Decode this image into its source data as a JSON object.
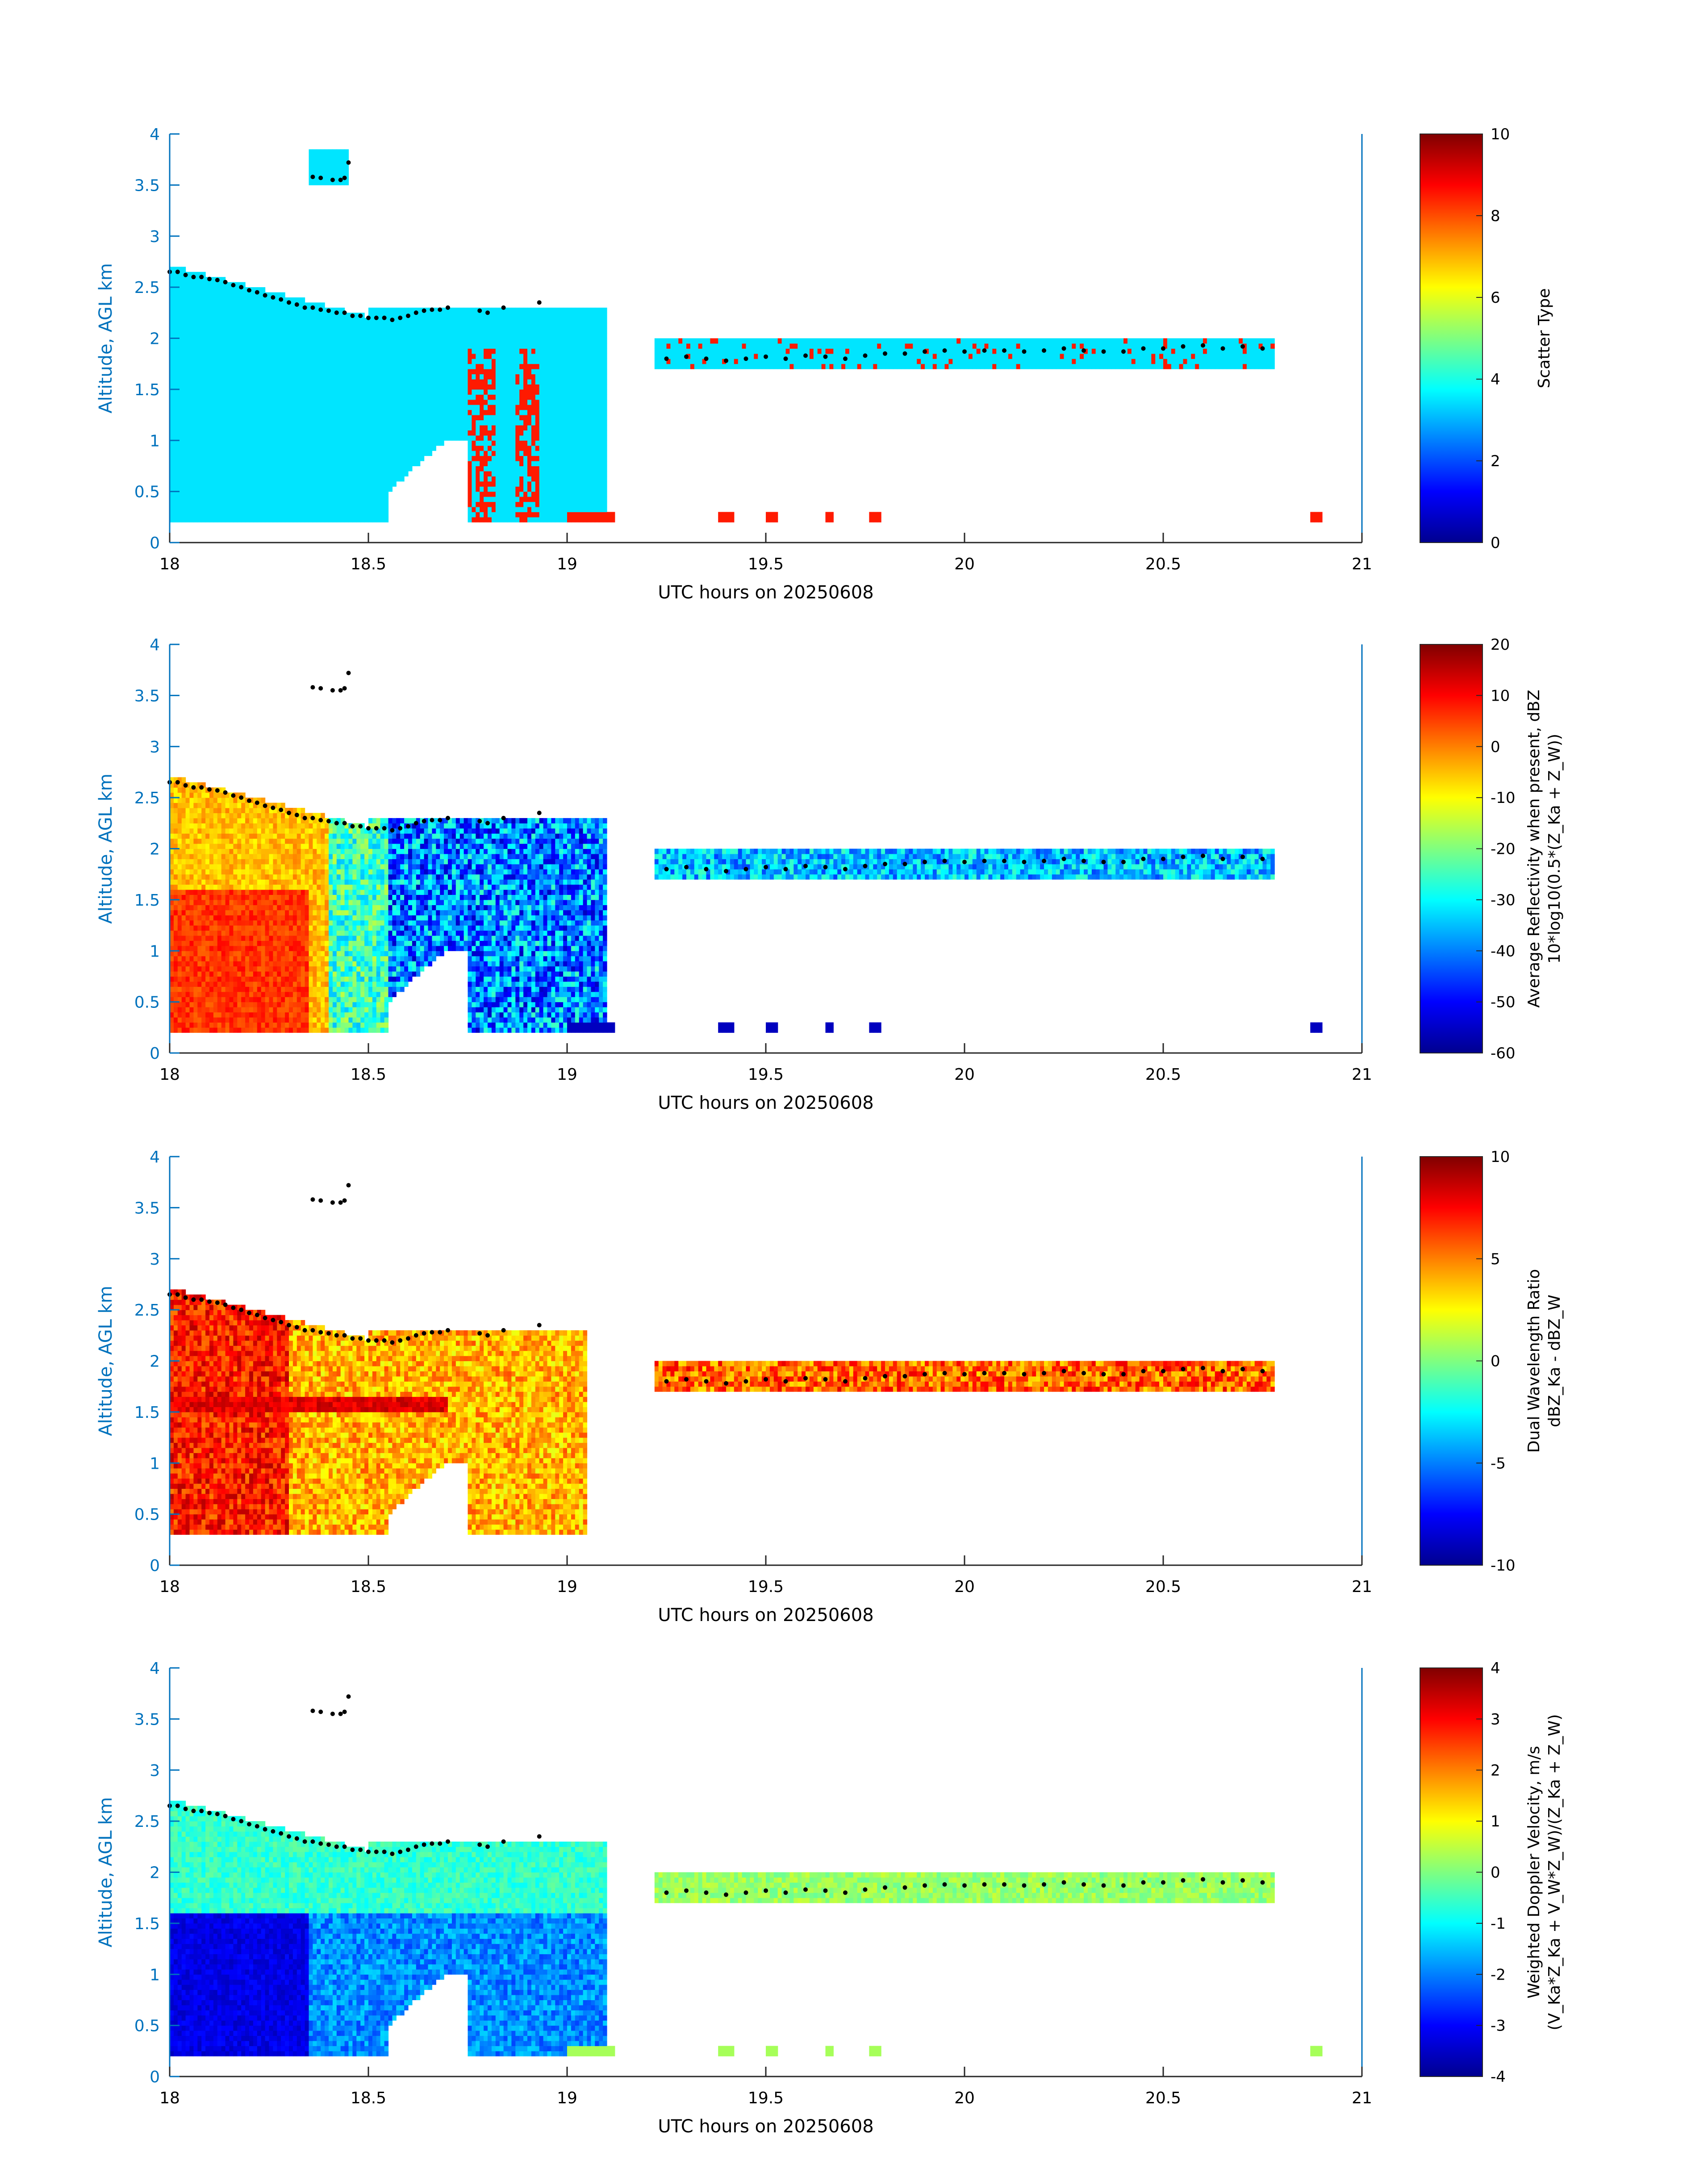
{
  "chart_data": [
    {
      "type": "heatmap",
      "panel": "scatter-type",
      "xlabel": "UTC hours on 20250608",
      "ylabel": "Altitude, AGL km",
      "xlim": [
        18,
        21
      ],
      "ylim": [
        0,
        4
      ],
      "xticks": [
        "18",
        "18.5",
        "19",
        "19.5",
        "20",
        "20.5",
        "21"
      ],
      "yticks": [
        "0",
        "0.5",
        "1",
        "1.5",
        "2",
        "2.5",
        "3",
        "3.5",
        "4"
      ],
      "colorbar": {
        "label_lines": [
          "Scatter Type"
        ],
        "range": [
          0,
          10
        ],
        "ticks": [
          "0",
          "2",
          "4",
          "6",
          "8",
          "10"
        ]
      }
    },
    {
      "type": "heatmap",
      "panel": "reflectivity",
      "xlabel": "UTC hours on 20250608",
      "ylabel": "Altitude, AGL km",
      "xlim": [
        18,
        21
      ],
      "ylim": [
        0,
        4
      ],
      "xticks": [
        "18",
        "18.5",
        "19",
        "19.5",
        "20",
        "20.5",
        "21"
      ],
      "yticks": [
        "0",
        "0.5",
        "1",
        "1.5",
        "2",
        "2.5",
        "3",
        "3.5",
        "4"
      ],
      "colorbar": {
        "label_lines": [
          "Average Reflectivity when present, dBZ",
          "10*log10(0.5*(Z_Ka + Z_W))"
        ],
        "range": [
          -60,
          20
        ],
        "ticks": [
          "-60",
          "-50",
          "-40",
          "-30",
          "-20",
          "-10",
          "0",
          "10",
          "20"
        ]
      }
    },
    {
      "type": "heatmap",
      "panel": "dual-wavelength-ratio",
      "xlabel": "UTC hours on 20250608",
      "ylabel": "Altitude, AGL km",
      "xlim": [
        18,
        21
      ],
      "ylim": [
        0,
        4
      ],
      "xticks": [
        "18",
        "18.5",
        "19",
        "19.5",
        "20",
        "20.5",
        "21"
      ],
      "yticks": [
        "0",
        "0.5",
        "1",
        "1.5",
        "2",
        "2.5",
        "3",
        "3.5",
        "4"
      ],
      "colorbar": {
        "label_lines": [
          "Dual Wavelength Ratio",
          "dBZ_Ka - dBZ_W"
        ],
        "range": [
          -10,
          10
        ],
        "ticks": [
          "-10",
          "-5",
          "0",
          "5",
          "10"
        ]
      }
    },
    {
      "type": "heatmap",
      "panel": "doppler-velocity",
      "xlabel": "UTC hours on 20250608",
      "ylabel": "Altitude, AGL km",
      "xlim": [
        18,
        21
      ],
      "ylim": [
        0,
        4
      ],
      "xticks": [
        "18",
        "18.5",
        "19",
        "19.5",
        "20",
        "20.5",
        "21"
      ],
      "yticks": [
        "0",
        "0.5",
        "1",
        "1.5",
        "2",
        "2.5",
        "3",
        "3.5",
        "4"
      ],
      "colorbar": {
        "label_lines": [
          "Weighted Doppler Velocity, m/s",
          "(V_Ka*Z_Ka + V_W*Z_W)/(Z_Ka + Z_W)"
        ],
        "range": [
          -4,
          4
        ],
        "ticks": [
          "-4",
          "-3",
          "-2",
          "-1",
          "0",
          "1",
          "2",
          "3",
          "4"
        ]
      }
    }
  ],
  "cloud_top_points": {
    "hours": [
      18.0,
      18.02,
      18.04,
      18.06,
      18.08,
      18.1,
      18.12,
      18.14,
      18.16,
      18.18,
      18.2,
      18.22,
      18.24,
      18.26,
      18.28,
      18.3,
      18.32,
      18.34,
      18.36,
      18.38,
      18.4,
      18.42,
      18.44,
      18.46,
      18.48,
      18.5,
      18.52,
      18.54,
      18.56,
      18.58,
      18.6,
      18.62,
      18.64,
      18.66,
      18.68,
      18.7,
      18.78,
      18.8,
      18.84,
      18.93
    ],
    "km": [
      2.65,
      2.65,
      2.62,
      2.6,
      2.6,
      2.58,
      2.57,
      2.55,
      2.52,
      2.5,
      2.47,
      2.45,
      2.42,
      2.4,
      2.38,
      2.35,
      2.33,
      2.3,
      2.3,
      2.28,
      2.27,
      2.25,
      2.25,
      2.22,
      2.22,
      2.2,
      2.2,
      2.2,
      2.18,
      2.2,
      2.22,
      2.25,
      2.27,
      2.28,
      2.28,
      2.3,
      2.27,
      2.25,
      2.3,
      2.35
    ],
    "high_hours": [
      18.36,
      18.38,
      18.41,
      18.43,
      18.44,
      18.45
    ],
    "high_km": [
      3.58,
      3.57,
      3.55,
      3.55,
      3.57,
      3.72
    ],
    "late_hours": [
      19.25,
      19.3,
      19.35,
      19.4,
      19.45,
      19.5,
      19.55,
      19.6,
      19.65,
      19.7,
      19.75,
      19.8,
      19.85,
      19.9,
      19.95,
      20.0,
      20.05,
      20.1,
      20.15,
      20.2,
      20.25,
      20.3,
      20.35,
      20.4,
      20.45,
      20.5,
      20.55,
      20.6,
      20.65,
      20.7,
      20.75
    ],
    "late_km": [
      1.8,
      1.82,
      1.8,
      1.78,
      1.8,
      1.82,
      1.8,
      1.83,
      1.82,
      1.8,
      1.83,
      1.85,
      1.85,
      1.87,
      1.88,
      1.87,
      1.88,
      1.88,
      1.87,
      1.88,
      1.9,
      1.88,
      1.87,
      1.87,
      1.9,
      1.9,
      1.92,
      1.93,
      1.9,
      1.92,
      1.9
    ]
  }
}
